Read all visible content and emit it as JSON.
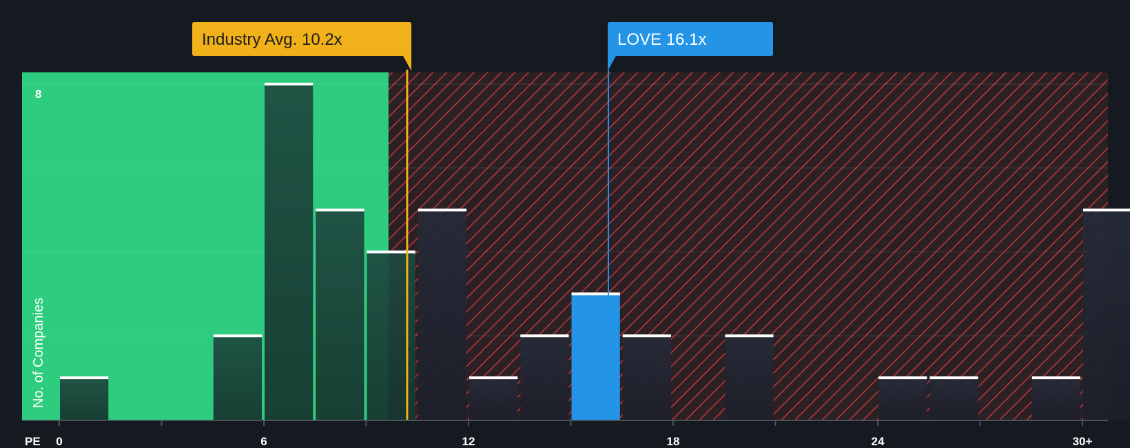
{
  "chart_data": {
    "type": "bar",
    "title": "",
    "xlabel": "PE",
    "ylabel": "No. of Companies",
    "xlim": [
      0,
      31.5
    ],
    "ylim": [
      0,
      8.3
    ],
    "x_ticks": [
      0,
      6,
      12,
      18,
      24,
      30
    ],
    "x_tick_labels": [
      "0",
      "6",
      "12",
      "18",
      "24",
      "30+"
    ],
    "y_ticks": [
      8
    ],
    "y_tick_labels": [
      "8"
    ],
    "bin_width": 1.5,
    "series": [
      {
        "name": "Companies",
        "bins": [
          {
            "start": 0,
            "value": 1
          },
          {
            "start": 4.5,
            "value": 2
          },
          {
            "start": 6,
            "value": 8
          },
          {
            "start": 7.5,
            "value": 5
          },
          {
            "start": 9,
            "value": 4
          },
          {
            "start": 10.5,
            "value": 5
          },
          {
            "start": 12,
            "value": 1
          },
          {
            "start": 13.5,
            "value": 2
          },
          {
            "start": 15,
            "value": 3,
            "highlight": true
          },
          {
            "start": 16.5,
            "value": 2
          },
          {
            "start": 19.5,
            "value": 2
          },
          {
            "start": 24,
            "value": 1
          },
          {
            "start": 25.5,
            "value": 1
          },
          {
            "start": 28.5,
            "value": 1
          },
          {
            "start": 30,
            "value": 5
          }
        ]
      }
    ],
    "fair_zone_end": 10.2,
    "annotations": [
      {
        "name": "industry-average",
        "label": "Industry Avg. 10.2x",
        "x": 10.2,
        "color": "#f0b11a",
        "text_color": "#1b1b1b"
      },
      {
        "name": "company",
        "label": "LOVE 16.1x",
        "x": 16.1,
        "color": "#2394e6",
        "text_color": "#ffffff"
      }
    ]
  },
  "colors": {
    "background": "#151a21",
    "fair_zone": "#2ecc7e",
    "over_zone": "#2b2125",
    "hatch": "#c0373a",
    "bar_fair": "#1e4a40",
    "bar_over": "#262a38",
    "bar_highlight": "#2394e6",
    "bar_cap": "#ffffff"
  }
}
